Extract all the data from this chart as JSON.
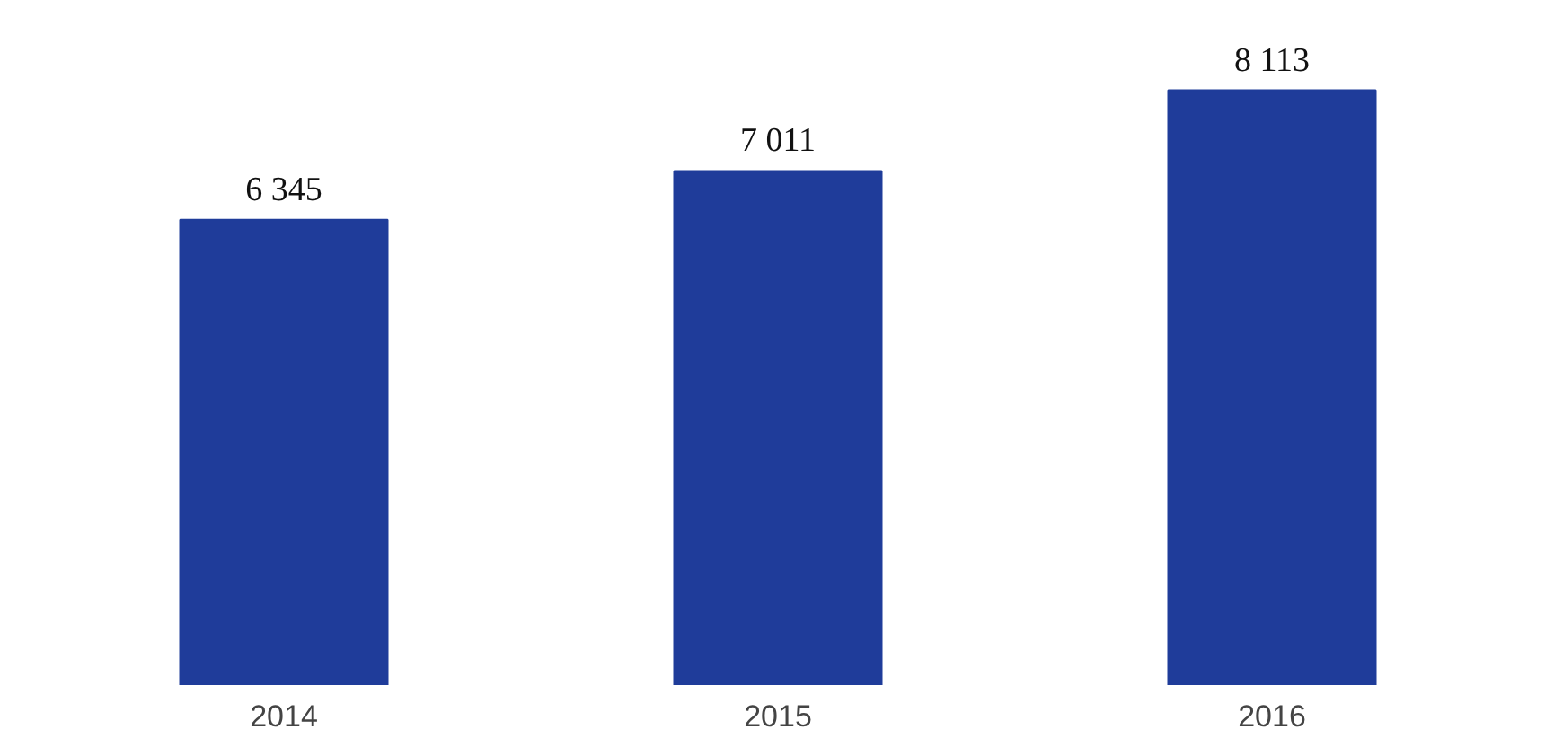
{
  "chart_data": {
    "type": "bar",
    "categories": [
      "2014",
      "2015",
      "2016"
    ],
    "values": [
      6345,
      7011,
      8113
    ],
    "color": "#1f3c9a",
    "value_labels": [
      "6 345",
      "7 011",
      "8 113"
    ]
  }
}
